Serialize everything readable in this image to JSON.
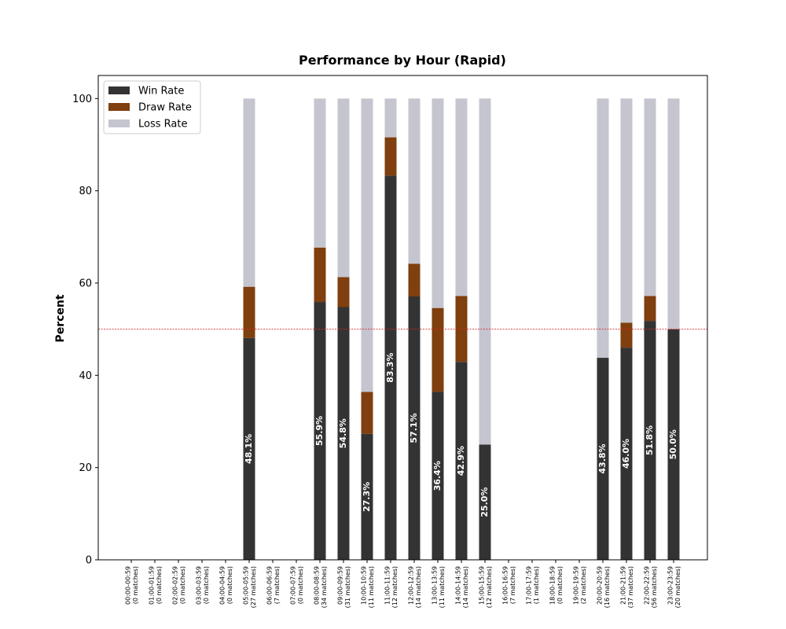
{
  "chart_data": {
    "type": "bar",
    "stacked": true,
    "title": "Performance by Hour (Rapid)",
    "xlabel": "",
    "ylabel": "Percent",
    "ylim": [
      0,
      105
    ],
    "yticks": [
      0,
      20,
      40,
      60,
      80,
      100
    ],
    "reference_line": {
      "y": 50,
      "color": "#d62728",
      "style": "dashed"
    },
    "legend_position": "top-left",
    "grid": false,
    "categories": [
      "00:00-00:59\n(0 matches)",
      "01:00-01:59\n(0 matches)",
      "02:00-02:59\n(0 matches)",
      "03:00-03:59\n(0 matches)",
      "04:00-04:59\n(0 matches)",
      "05:00-05:59\n(27 matches)",
      "06:00-06:59\n(7 matches)",
      "07:00-07:59\n(0 matches)",
      "08:00-08:59\n(34 matches)",
      "09:00-09:59\n(31 matches)",
      "10:00-10:59\n(11 matches)",
      "11:00-11:59\n(12 matches)",
      "12:00-12:59\n(14 matches)",
      "13:00-13:59\n(11 matches)",
      "14:00-14:59\n(14 matches)",
      "15:00-15:59\n(12 matches)",
      "16:00-16:59\n(7 matches)",
      "17:00-17:59\n(1 matches)",
      "18:00-18:59\n(0 matches)",
      "19:00-19:59\n(2 matches)",
      "20:00-20:59\n(16 matches)",
      "21:00-21:59\n(37 matches)",
      "22:00-22:59\n(56 matches)",
      "23:00-23:59\n(20 matches)"
    ],
    "series": [
      {
        "name": "Win Rate",
        "color": "#333333",
        "values": [
          0,
          0,
          0,
          0,
          0,
          48.1,
          0,
          0,
          55.9,
          54.8,
          27.3,
          83.3,
          57.1,
          36.4,
          42.9,
          25.0,
          0,
          0,
          0,
          0,
          43.8,
          46.0,
          51.8,
          50.0
        ]
      },
      {
        "name": "Draw Rate",
        "color": "#7f3f0e",
        "values": [
          0,
          0,
          0,
          0,
          0,
          11.1,
          0,
          0,
          11.8,
          6.5,
          9.1,
          8.3,
          7.1,
          18.2,
          14.3,
          0,
          0,
          0,
          0,
          0,
          0,
          5.4,
          5.4,
          0
        ]
      },
      {
        "name": "Loss Rate",
        "color": "#c5c5d0",
        "values": [
          0,
          0,
          0,
          0,
          0,
          40.8,
          0,
          0,
          32.3,
          38.7,
          63.6,
          8.4,
          35.8,
          45.4,
          42.8,
          75.0,
          0,
          0,
          0,
          0,
          56.2,
          48.6,
          42.8,
          50.0
        ]
      }
    ],
    "value_labels": [
      "0",
      "0",
      "0",
      "0",
      "0",
      "48.1%",
      "0",
      "0",
      "55.9%",
      "54.8%",
      "27.3%",
      "83.3%",
      "57.1%",
      "36.4%",
      "42.9%",
      "25.0%",
      "0",
      "0",
      "0",
      "0",
      "43.8%",
      "46.0%",
      "51.8%",
      "50.0%"
    ]
  }
}
